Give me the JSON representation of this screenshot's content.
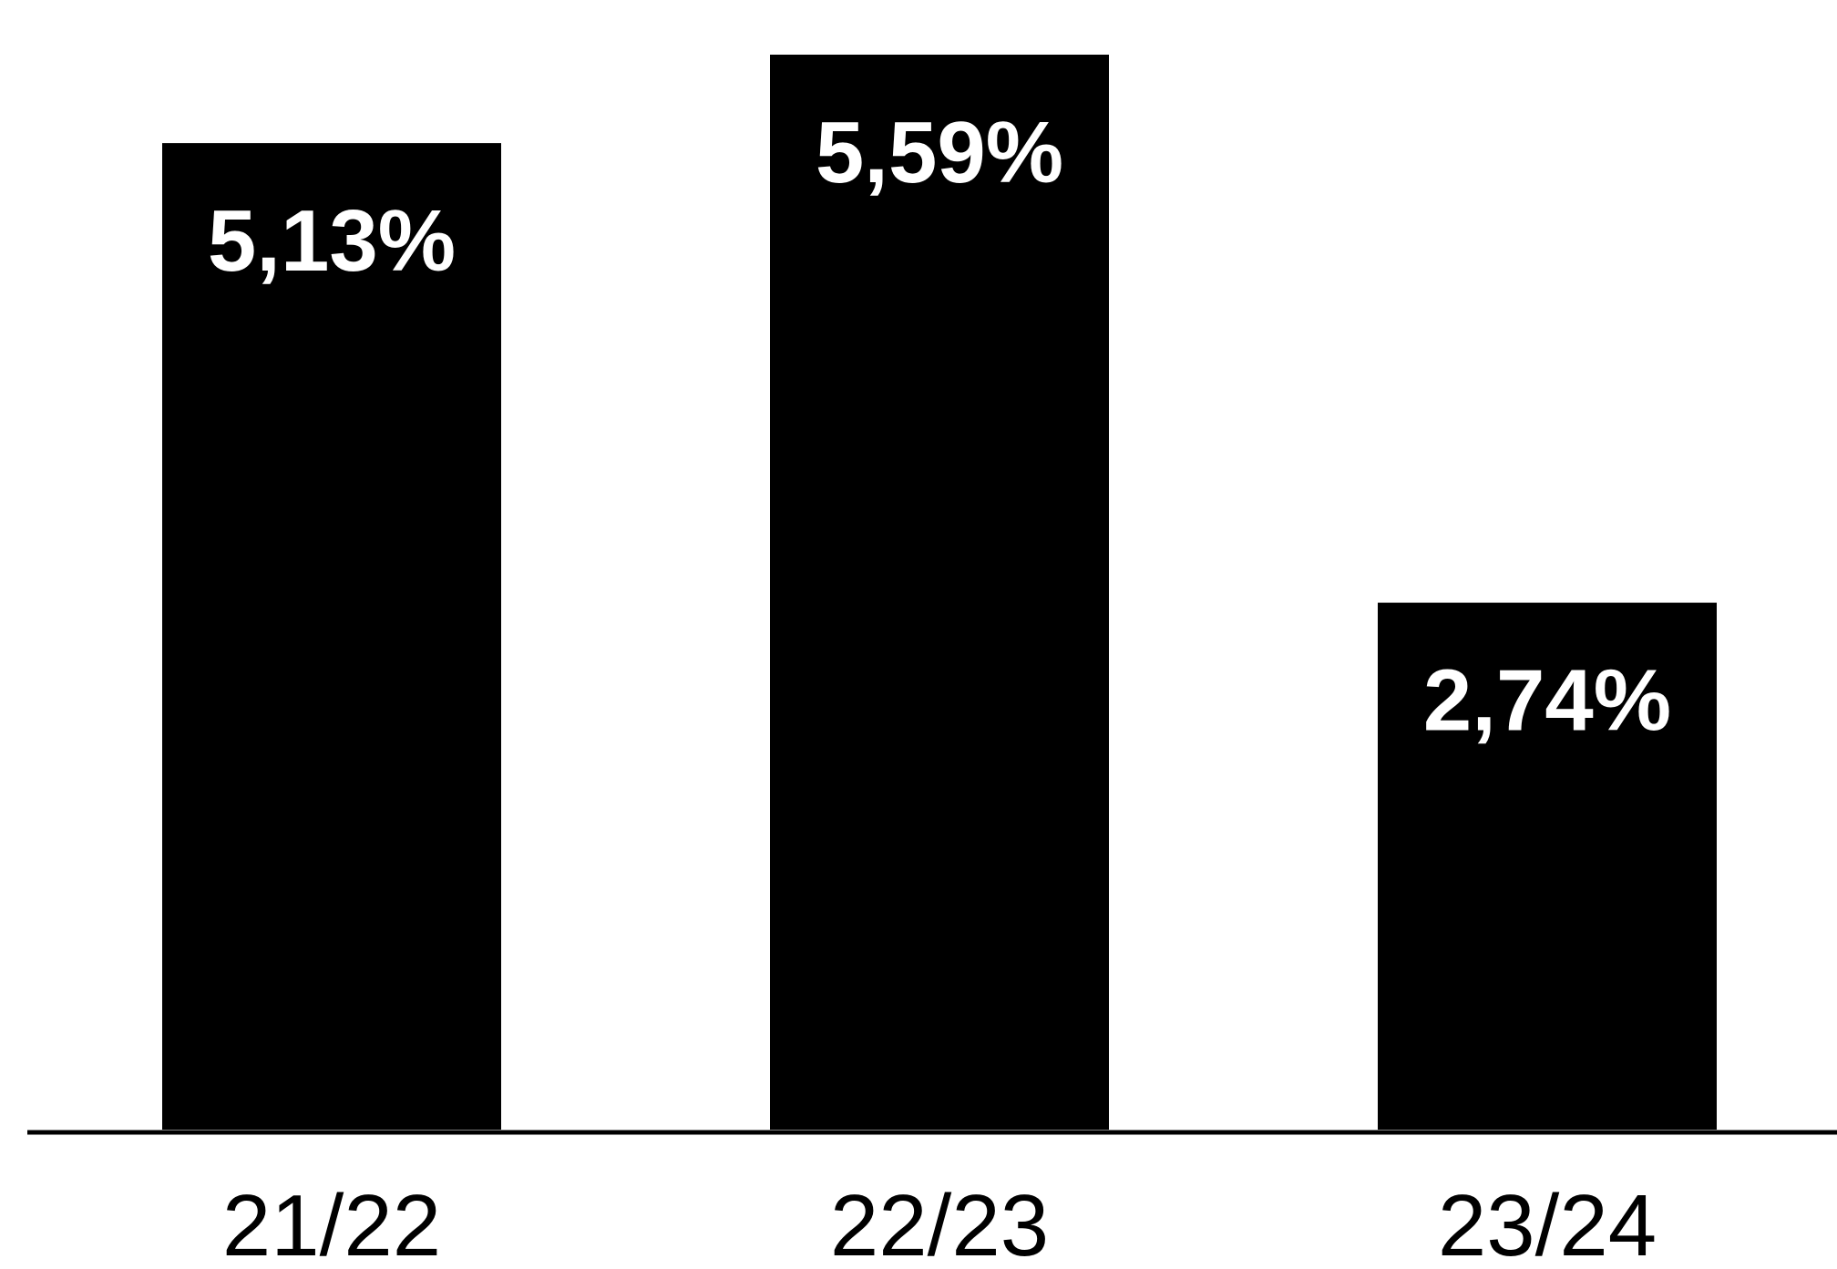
{
  "chart_data": {
    "type": "bar",
    "categories": [
      "21/22",
      "22/23",
      "23/24"
    ],
    "values": [
      5.13,
      5.59,
      2.74
    ],
    "value_labels": [
      "5,13%",
      "5,59%",
      "2,74%"
    ],
    "title": "",
    "xlabel": "",
    "ylabel": "",
    "ylim": [
      0,
      5.59
    ],
    "grid": false,
    "legend": "none",
    "bar_color": "#000000",
    "label_color": "#ffffff",
    "axis_color": "#000000"
  }
}
